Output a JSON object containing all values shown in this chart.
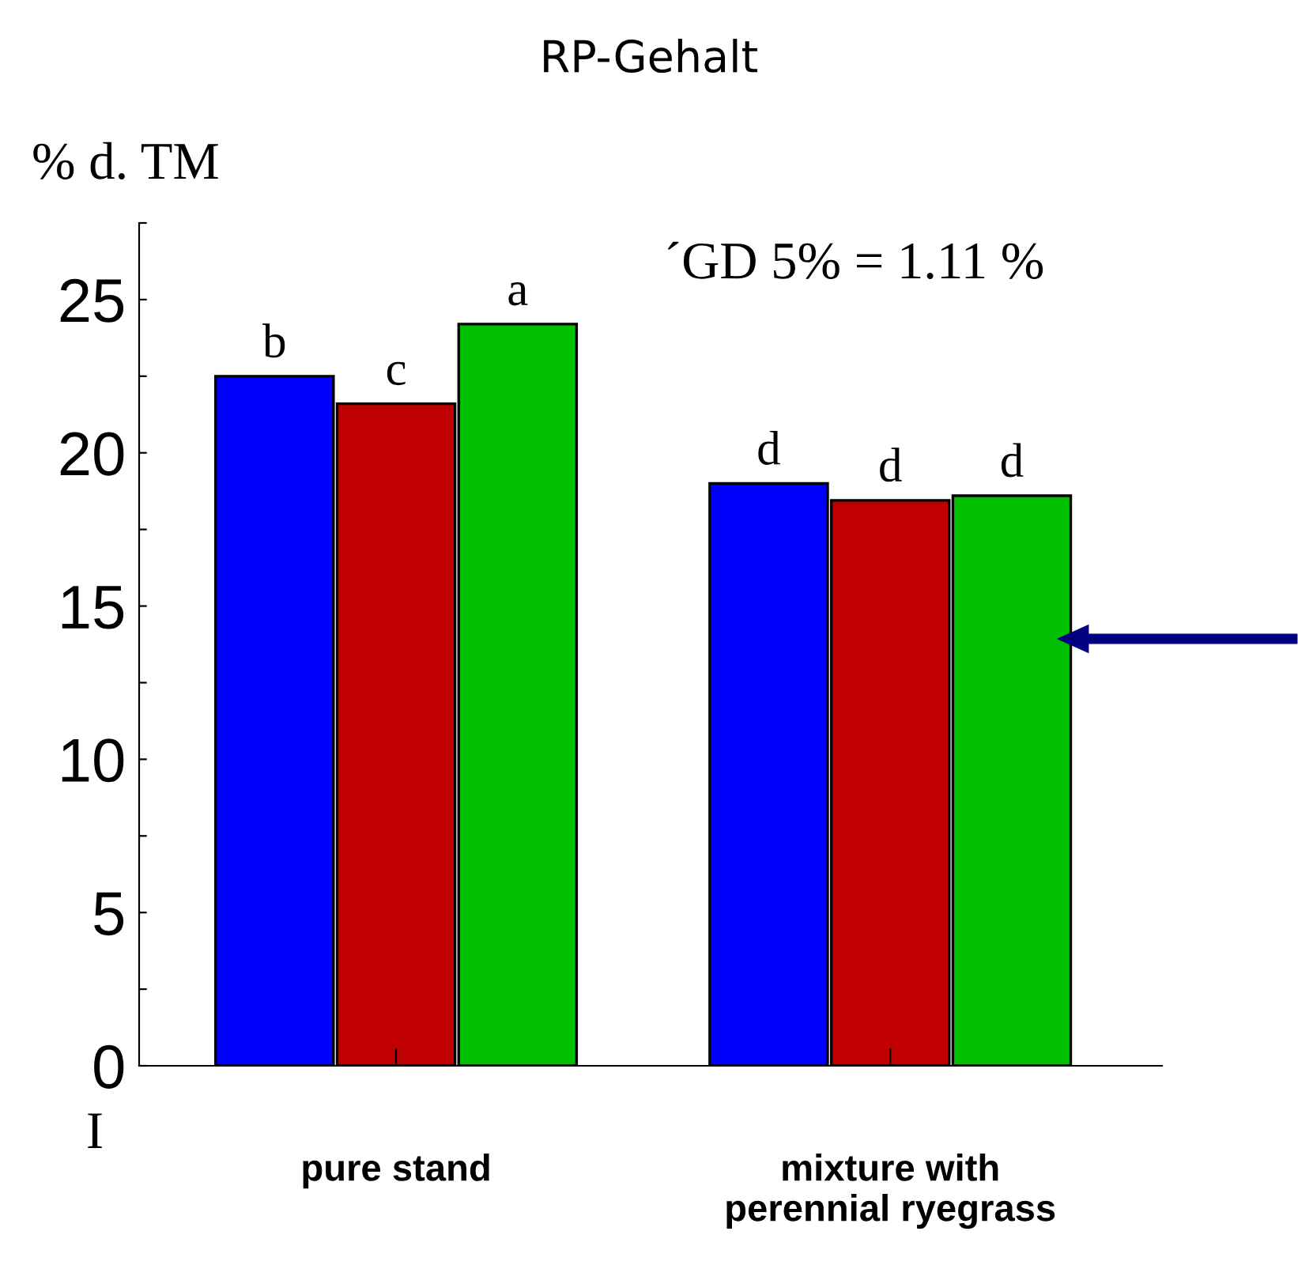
{
  "chart_data": {
    "type": "bar",
    "title": "RP-Gehalt",
    "ylabel": "% d. TM",
    "categories": [
      "pure stand",
      "mixture with\nperennial ryegrass"
    ],
    "series": [
      {
        "color": "#0000ff",
        "values": [
          22.5,
          19.0
        ],
        "value_labels": [
          "b",
          "d"
        ]
      },
      {
        "color": "#c00000",
        "values": [
          21.6,
          18.45
        ],
        "value_labels": [
          "c",
          "d"
        ]
      },
      {
        "color": "#00c000",
        "values": [
          24.2,
          18.6
        ],
        "value_labels": [
          "a",
          "d"
        ]
      }
    ],
    "ylim": [
      0,
      27.5
    ],
    "yticks": [
      0,
      {
        "value": 2.5,
        "label": null
      },
      5,
      {
        "value": 7.5,
        "label": null
      },
      10,
      {
        "value": 12.5,
        "label": null
      },
      15,
      {
        "value": 17.5,
        "label": null
      },
      20,
      {
        "value": 22.5,
        "label": null
      },
      25,
      {
        "value": 27.5,
        "label": null
      }
    ],
    "annotations": [
      "´GD 5% = 1.11 %",
      "I"
    ],
    "grid": false,
    "legend": false
  }
}
